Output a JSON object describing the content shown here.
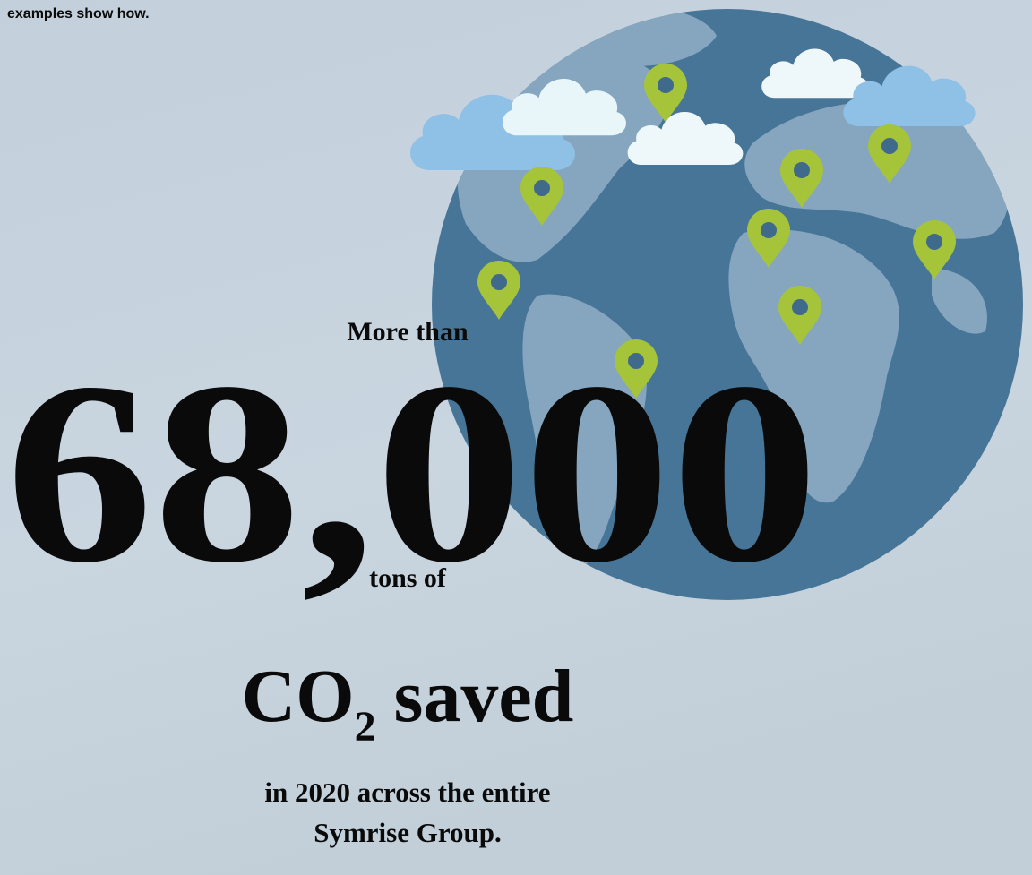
{
  "intro": "examples show how.",
  "lead": "More than",
  "figure": "68,000",
  "unit": "tons of",
  "headline": {
    "main": "CO",
    "subscript": "2",
    "rest": "saved"
  },
  "footer": [
    "in 2020 across the entire",
    "Symrise Group."
  ]
}
